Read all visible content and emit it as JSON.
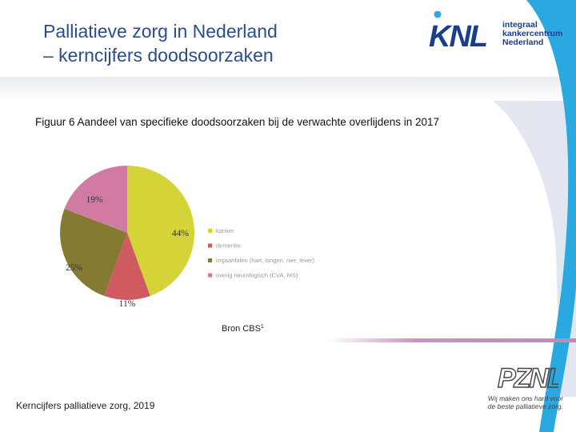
{
  "slide": {
    "title_line1": "Palliatieve zorg in Nederland",
    "title_line2": "– kerncijfers doodsoorzaken",
    "figure_caption": "Figuur 6 Aandeel van specifieke doodsoorzaken bij de verwachte overlijdens in 2017",
    "source_text": "Bron CBS",
    "source_sup": "1",
    "footer": "Kerncijfers palliatieve zorg, 2019"
  },
  "logos": {
    "knl_mark": "KNL",
    "knl_line1": "integraal",
    "knl_line2": "kankercentrum",
    "knl_line3": "Nederland",
    "pznl_mark": "PZNL",
    "pznl_tag1": "Wij maken ons hard voor",
    "pznl_tag2": "de beste palliatieve zorg."
  },
  "colors": {
    "title": "#2a4d8f",
    "knl_blue": "#1a3f8a",
    "accent_cyan": "#29a9e0",
    "accent_pink": "#c08ab8"
  },
  "chart_data": {
    "type": "pie",
    "title": "",
    "start_angle_deg": 0,
    "direction": "clockwise",
    "legend_position": "right",
    "slices": [
      {
        "label": "kanker",
        "value": 44,
        "display": "44%",
        "color": "#d4d439"
      },
      {
        "label": "dementie",
        "value": 11,
        "display": "11%",
        "color": "#cf5a60"
      },
      {
        "label": "orgaanfalen (hart, longen, nier, lever)",
        "value": 25,
        "display": "25%",
        "color": "#867a33"
      },
      {
        "label": "overig neurologisch (CVA, MS)",
        "value": 19,
        "display": "19%",
        "color": "#d17ba3"
      }
    ]
  }
}
